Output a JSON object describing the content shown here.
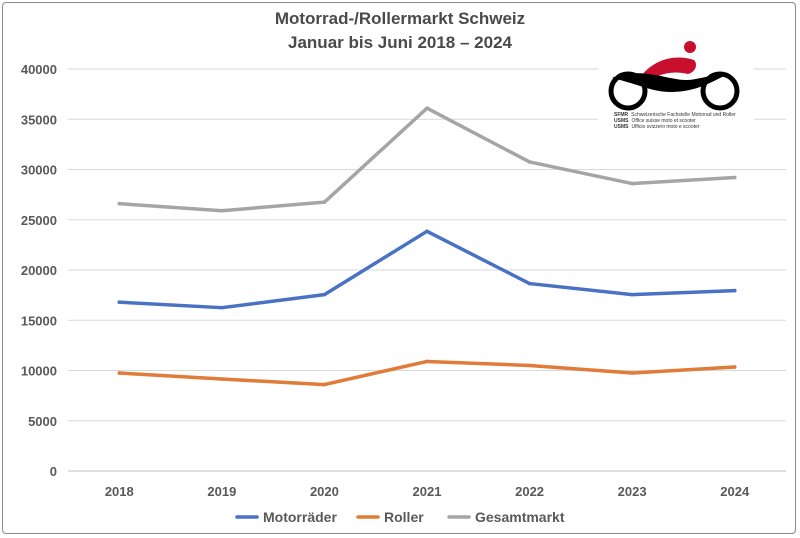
{
  "chart_data": {
    "type": "line",
    "title": "Motorrad-/Rollermarkt Schweiz",
    "subtitle": "Januar bis Juni 2018 – 2024",
    "categories": [
      "2018",
      "2019",
      "2020",
      "2021",
      "2022",
      "2023",
      "2024"
    ],
    "series": [
      {
        "name": "Motorräder",
        "color": "#4a72c4",
        "values": [
          16800,
          16250,
          17550,
          23850,
          18650,
          17550,
          17950
        ]
      },
      {
        "name": "Roller",
        "color": "#e07b39",
        "values": [
          9750,
          9150,
          8600,
          10900,
          10500,
          9750,
          10350
        ]
      },
      {
        "name": "Gesamtmarkt",
        "color": "#a5a5a5",
        "values": [
          26600,
          25900,
          26750,
          36100,
          30750,
          28600,
          29200
        ]
      }
    ],
    "ylim": [
      0,
      40000
    ],
    "yticks": [
      0,
      5000,
      10000,
      15000,
      20000,
      25000,
      30000,
      35000,
      40000
    ],
    "grid": true,
    "legend_position": "bottom"
  },
  "logo": {
    "name": "motorcycle-rider-logo",
    "lines": [
      {
        "abbr": "SFMR",
        "text": "Schweizerische Fachstelle Motorrad und Roller"
      },
      {
        "abbr": "USMS",
        "text": "Office suisse moto et scooter"
      },
      {
        "abbr": "USMS",
        "text": "Ufficio svizzero moto e scooter"
      }
    ],
    "colors": {
      "rider": "#c8102e",
      "bike": "#000000"
    }
  }
}
